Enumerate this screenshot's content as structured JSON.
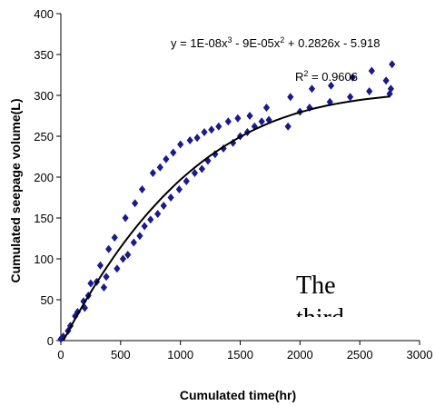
{
  "chart_data": {
    "type": "scatter",
    "xlabel": "Cumulated time(hr)",
    "ylabel": "Cumulated seepage volume(L)",
    "xlim": [
      0,
      3000
    ],
    "ylim": [
      0,
      400
    ],
    "x_ticks": [
      "0",
      "500",
      "1000",
      "1500",
      "2000",
      "2500",
      "3000"
    ],
    "y_ticks": [
      "0",
      "50",
      "100",
      "150",
      "200",
      "250",
      "300",
      "350",
      "400"
    ],
    "grid": false,
    "marker_color": "#1a1a8c",
    "trendline_color": "#000000",
    "trendline": {
      "label_prefix": "y = 1E-08x",
      "label_mid1": " - 9E-05x",
      "label_suffix": " + 0.2826x - 5.918",
      "exp_3": "3",
      "exp_2": "2",
      "r2_label": "R",
      "r2_exp": "2",
      "r2_value": " = 0.9606",
      "a3": 1e-08,
      "a2": -9e-05,
      "a1": 0.2826,
      "a0": -5.918,
      "x_range": [
        0,
        2750
      ]
    },
    "overlay_text": {
      "line1": "The",
      "line2": "third"
    },
    "series": [
      {
        "points": [
          [
            0,
            2
          ],
          [
            20,
            5
          ],
          [
            60,
            12
          ],
          [
            80,
            18
          ],
          [
            120,
            30
          ],
          [
            140,
            35
          ],
          [
            190,
            48
          ],
          [
            200,
            40
          ],
          [
            230,
            55
          ],
          [
            250,
            70
          ],
          [
            300,
            72
          ],
          [
            330,
            92
          ],
          [
            360,
            65
          ],
          [
            380,
            78
          ],
          [
            400,
            112
          ],
          [
            450,
            126
          ],
          [
            470,
            88
          ],
          [
            520,
            100
          ],
          [
            540,
            150
          ],
          [
            560,
            105
          ],
          [
            610,
            120
          ],
          [
            620,
            168
          ],
          [
            660,
            128
          ],
          [
            680,
            185
          ],
          [
            700,
            140
          ],
          [
            750,
            148
          ],
          [
            770,
            205
          ],
          [
            810,
            155
          ],
          [
            830,
            212
          ],
          [
            860,
            165
          ],
          [
            880,
            222
          ],
          [
            920,
            175
          ],
          [
            940,
            230
          ],
          [
            990,
            185
          ],
          [
            1000,
            240
          ],
          [
            1050,
            195
          ],
          [
            1080,
            245
          ],
          [
            1120,
            205
          ],
          [
            1140,
            248
          ],
          [
            1180,
            210
          ],
          [
            1200,
            255
          ],
          [
            1230,
            220
          ],
          [
            1260,
            258
          ],
          [
            1290,
            228
          ],
          [
            1320,
            262
          ],
          [
            1360,
            235
          ],
          [
            1400,
            268
          ],
          [
            1440,
            242
          ],
          [
            1480,
            272
          ],
          [
            1500,
            250
          ],
          [
            1560,
            255
          ],
          [
            1580,
            275
          ],
          [
            1620,
            262
          ],
          [
            1680,
            268
          ],
          [
            1720,
            285
          ],
          [
            1740,
            270
          ],
          [
            1900,
            262
          ],
          [
            1920,
            298
          ],
          [
            2000,
            280
          ],
          [
            2080,
            285
          ],
          [
            2100,
            308
          ],
          [
            2250,
            292
          ],
          [
            2260,
            312
          ],
          [
            2420,
            298
          ],
          [
            2440,
            322
          ],
          [
            2580,
            305
          ],
          [
            2600,
            330
          ],
          [
            2750,
            302
          ],
          [
            2760,
            308
          ],
          [
            2770,
            338
          ],
          [
            2720,
            318
          ]
        ]
      }
    ]
  }
}
